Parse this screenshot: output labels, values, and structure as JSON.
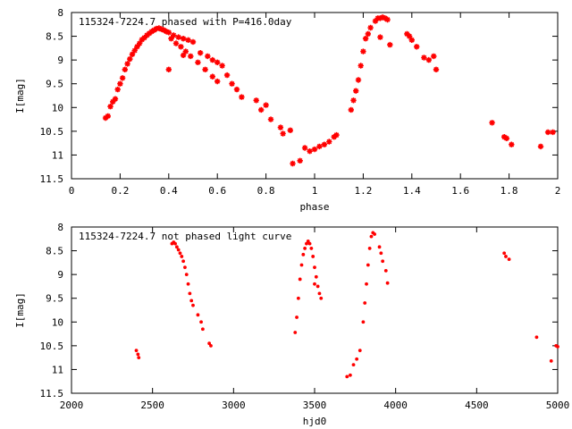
{
  "chart_data": [
    {
      "type": "scatter",
      "title": "115324-7224.7 phased with P=416.0day",
      "xlabel": "phase",
      "ylabel": "I[mag]",
      "xlim": [
        0,
        2
      ],
      "ylim": [
        11.5,
        8
      ],
      "y_inverted": true,
      "xticks": [
        "0",
        "0.2",
        "0.4",
        "0.6",
        "0.8",
        "1",
        "1.2",
        "1.4",
        "1.6",
        "1.8",
        "2"
      ],
      "yticks": [
        "8",
        "8.5",
        "9",
        "9.5",
        "10",
        "10.5",
        "11",
        "11.5"
      ],
      "grid": false,
      "marker_color": "#ff0000",
      "marker": "star",
      "series": [
        {
          "points": [
            [
              0.14,
              10.22
            ],
            [
              0.15,
              10.18
            ],
            [
              0.16,
              9.98
            ],
            [
              0.17,
              9.88
            ],
            [
              0.18,
              9.82
            ],
            [
              0.19,
              9.62
            ],
            [
              0.2,
              9.5
            ],
            [
              0.21,
              9.38
            ],
            [
              0.22,
              9.2
            ],
            [
              0.23,
              9.08
            ],
            [
              0.24,
              8.98
            ],
            [
              0.25,
              8.88
            ],
            [
              0.26,
              8.8
            ],
            [
              0.27,
              8.72
            ],
            [
              0.28,
              8.65
            ],
            [
              0.29,
              8.57
            ],
            [
              0.3,
              8.53
            ],
            [
              0.31,
              8.48
            ],
            [
              0.32,
              8.44
            ],
            [
              0.33,
              8.4
            ],
            [
              0.34,
              8.37
            ],
            [
              0.35,
              8.34
            ],
            [
              0.36,
              8.33
            ],
            [
              0.37,
              8.35
            ],
            [
              0.38,
              8.37
            ],
            [
              0.39,
              8.4
            ],
            [
              0.4,
              8.42
            ],
            [
              0.42,
              8.48
            ],
            [
              0.44,
              8.52
            ],
            [
              0.46,
              8.55
            ],
            [
              0.48,
              8.58
            ],
            [
              0.5,
              8.62
            ],
            [
              0.41,
              8.55
            ],
            [
              0.43,
              8.65
            ],
            [
              0.45,
              8.72
            ],
            [
              0.47,
              8.82
            ],
            [
              0.49,
              8.92
            ],
            [
              0.52,
              9.05
            ],
            [
              0.55,
              9.2
            ],
            [
              0.58,
              9.35
            ],
            [
              0.6,
              9.45
            ],
            [
              0.4,
              9.2
            ],
            [
              0.46,
              8.9
            ],
            [
              0.53,
              8.85
            ],
            [
              0.56,
              8.92
            ],
            [
              0.58,
              9.0
            ],
            [
              0.6,
              9.05
            ],
            [
              0.62,
              9.12
            ],
            [
              0.64,
              9.32
            ],
            [
              0.66,
              9.5
            ],
            [
              0.68,
              9.62
            ],
            [
              0.7,
              9.78
            ],
            [
              0.76,
              9.85
            ],
            [
              0.78,
              10.05
            ],
            [
              0.8,
              9.95
            ],
            [
              0.82,
              10.25
            ],
            [
              0.86,
              10.42
            ],
            [
              0.87,
              10.55
            ],
            [
              0.9,
              10.48
            ],
            [
              0.91,
              11.18
            ],
            [
              0.94,
              11.12
            ],
            [
              0.96,
              10.85
            ],
            [
              0.98,
              10.92
            ],
            [
              1.0,
              10.88
            ],
            [
              1.02,
              10.82
            ],
            [
              1.04,
              10.78
            ],
            [
              1.06,
              10.72
            ],
            [
              1.08,
              10.62
            ],
            [
              1.09,
              10.58
            ],
            [
              1.15,
              10.05
            ],
            [
              1.16,
              9.85
            ],
            [
              1.17,
              9.65
            ],
            [
              1.18,
              9.42
            ],
            [
              1.19,
              9.12
            ],
            [
              1.2,
              8.82
            ],
            [
              1.21,
              8.55
            ],
            [
              1.22,
              8.45
            ],
            [
              1.23,
              8.32
            ],
            [
              1.25,
              8.18
            ],
            [
              1.26,
              8.12
            ],
            [
              1.27,
              8.12
            ],
            [
              1.28,
              8.1
            ],
            [
              1.29,
              8.12
            ],
            [
              1.3,
              8.15
            ],
            [
              1.27,
              8.52
            ],
            [
              1.31,
              8.68
            ],
            [
              1.38,
              8.45
            ],
            [
              1.39,
              8.5
            ],
            [
              1.4,
              8.58
            ],
            [
              1.42,
              8.72
            ],
            [
              1.45,
              8.95
            ],
            [
              1.47,
              9.0
            ],
            [
              1.49,
              8.92
            ],
            [
              1.5,
              9.2
            ],
            [
              1.73,
              10.32
            ],
            [
              1.78,
              10.62
            ],
            [
              1.79,
              10.65
            ],
            [
              1.81,
              10.78
            ],
            [
              1.93,
              10.82
            ],
            [
              1.96,
              10.52
            ],
            [
              1.98,
              10.52
            ]
          ]
        }
      ]
    },
    {
      "type": "scatter",
      "title": "115324-7224.7 not phased light curve",
      "xlabel": "hjd0",
      "ylabel": "I[mag]",
      "xlim": [
        2000,
        5000
      ],
      "ylim": [
        11.5,
        8
      ],
      "y_inverted": true,
      "xticks": [
        "2000",
        "2500",
        "3000",
        "3500",
        "4000",
        "4500",
        "5000"
      ],
      "yticks": [
        "8",
        "8.5",
        "9",
        "9.5",
        "10",
        "10.5",
        "11",
        "11.5"
      ],
      "grid": false,
      "marker_color": "#ff0000",
      "marker": "dot",
      "series": [
        {
          "points": [
            [
              2400,
              10.6
            ],
            [
              2410,
              10.68
            ],
            [
              2415,
              10.75
            ],
            [
              2620,
              8.35
            ],
            [
              2630,
              8.32
            ],
            [
              2640,
              8.35
            ],
            [
              2650,
              8.42
            ],
            [
              2660,
              8.48
            ],
            [
              2670,
              8.55
            ],
            [
              2680,
              8.62
            ],
            [
              2690,
              8.72
            ],
            [
              2700,
              8.85
            ],
            [
              2710,
              9.0
            ],
            [
              2720,
              9.2
            ],
            [
              2730,
              9.4
            ],
            [
              2740,
              9.55
            ],
            [
              2750,
              9.65
            ],
            [
              2780,
              9.85
            ],
            [
              2800,
              10.0
            ],
            [
              2810,
              10.15
            ],
            [
              2850,
              10.45
            ],
            [
              2860,
              10.5
            ],
            [
              3380,
              10.22
            ],
            [
              3390,
              9.9
            ],
            [
              3400,
              9.5
            ],
            [
              3410,
              9.1
            ],
            [
              3420,
              8.8
            ],
            [
              3430,
              8.58
            ],
            [
              3440,
              8.45
            ],
            [
              3450,
              8.35
            ],
            [
              3460,
              8.3
            ],
            [
              3470,
              8.35
            ],
            [
              3480,
              8.45
            ],
            [
              3490,
              8.62
            ],
            [
              3500,
              8.85
            ],
            [
              3510,
              9.05
            ],
            [
              3520,
              9.25
            ],
            [
              3530,
              9.4
            ],
            [
              3540,
              9.5
            ],
            [
              3500,
              9.2
            ],
            [
              3700,
              11.15
            ],
            [
              3720,
              11.12
            ],
            [
              3740,
              10.9
            ],
            [
              3760,
              10.78
            ],
            [
              3780,
              10.6
            ],
            [
              3800,
              10.0
            ],
            [
              3810,
              9.6
            ],
            [
              3820,
              9.2
            ],
            [
              3830,
              8.8
            ],
            [
              3840,
              8.45
            ],
            [
              3850,
              8.2
            ],
            [
              3860,
              8.12
            ],
            [
              3870,
              8.15
            ],
            [
              3900,
              8.42
            ],
            [
              3910,
              8.55
            ],
            [
              3920,
              8.72
            ],
            [
              3940,
              8.92
            ],
            [
              3950,
              9.18
            ],
            [
              4670,
              8.55
            ],
            [
              4680,
              8.62
            ],
            [
              4700,
              8.68
            ],
            [
              4870,
              10.32
            ],
            [
              4960,
              10.82
            ],
            [
              4990,
              10.5
            ],
            [
              5000,
              10.52
            ]
          ]
        }
      ]
    }
  ]
}
